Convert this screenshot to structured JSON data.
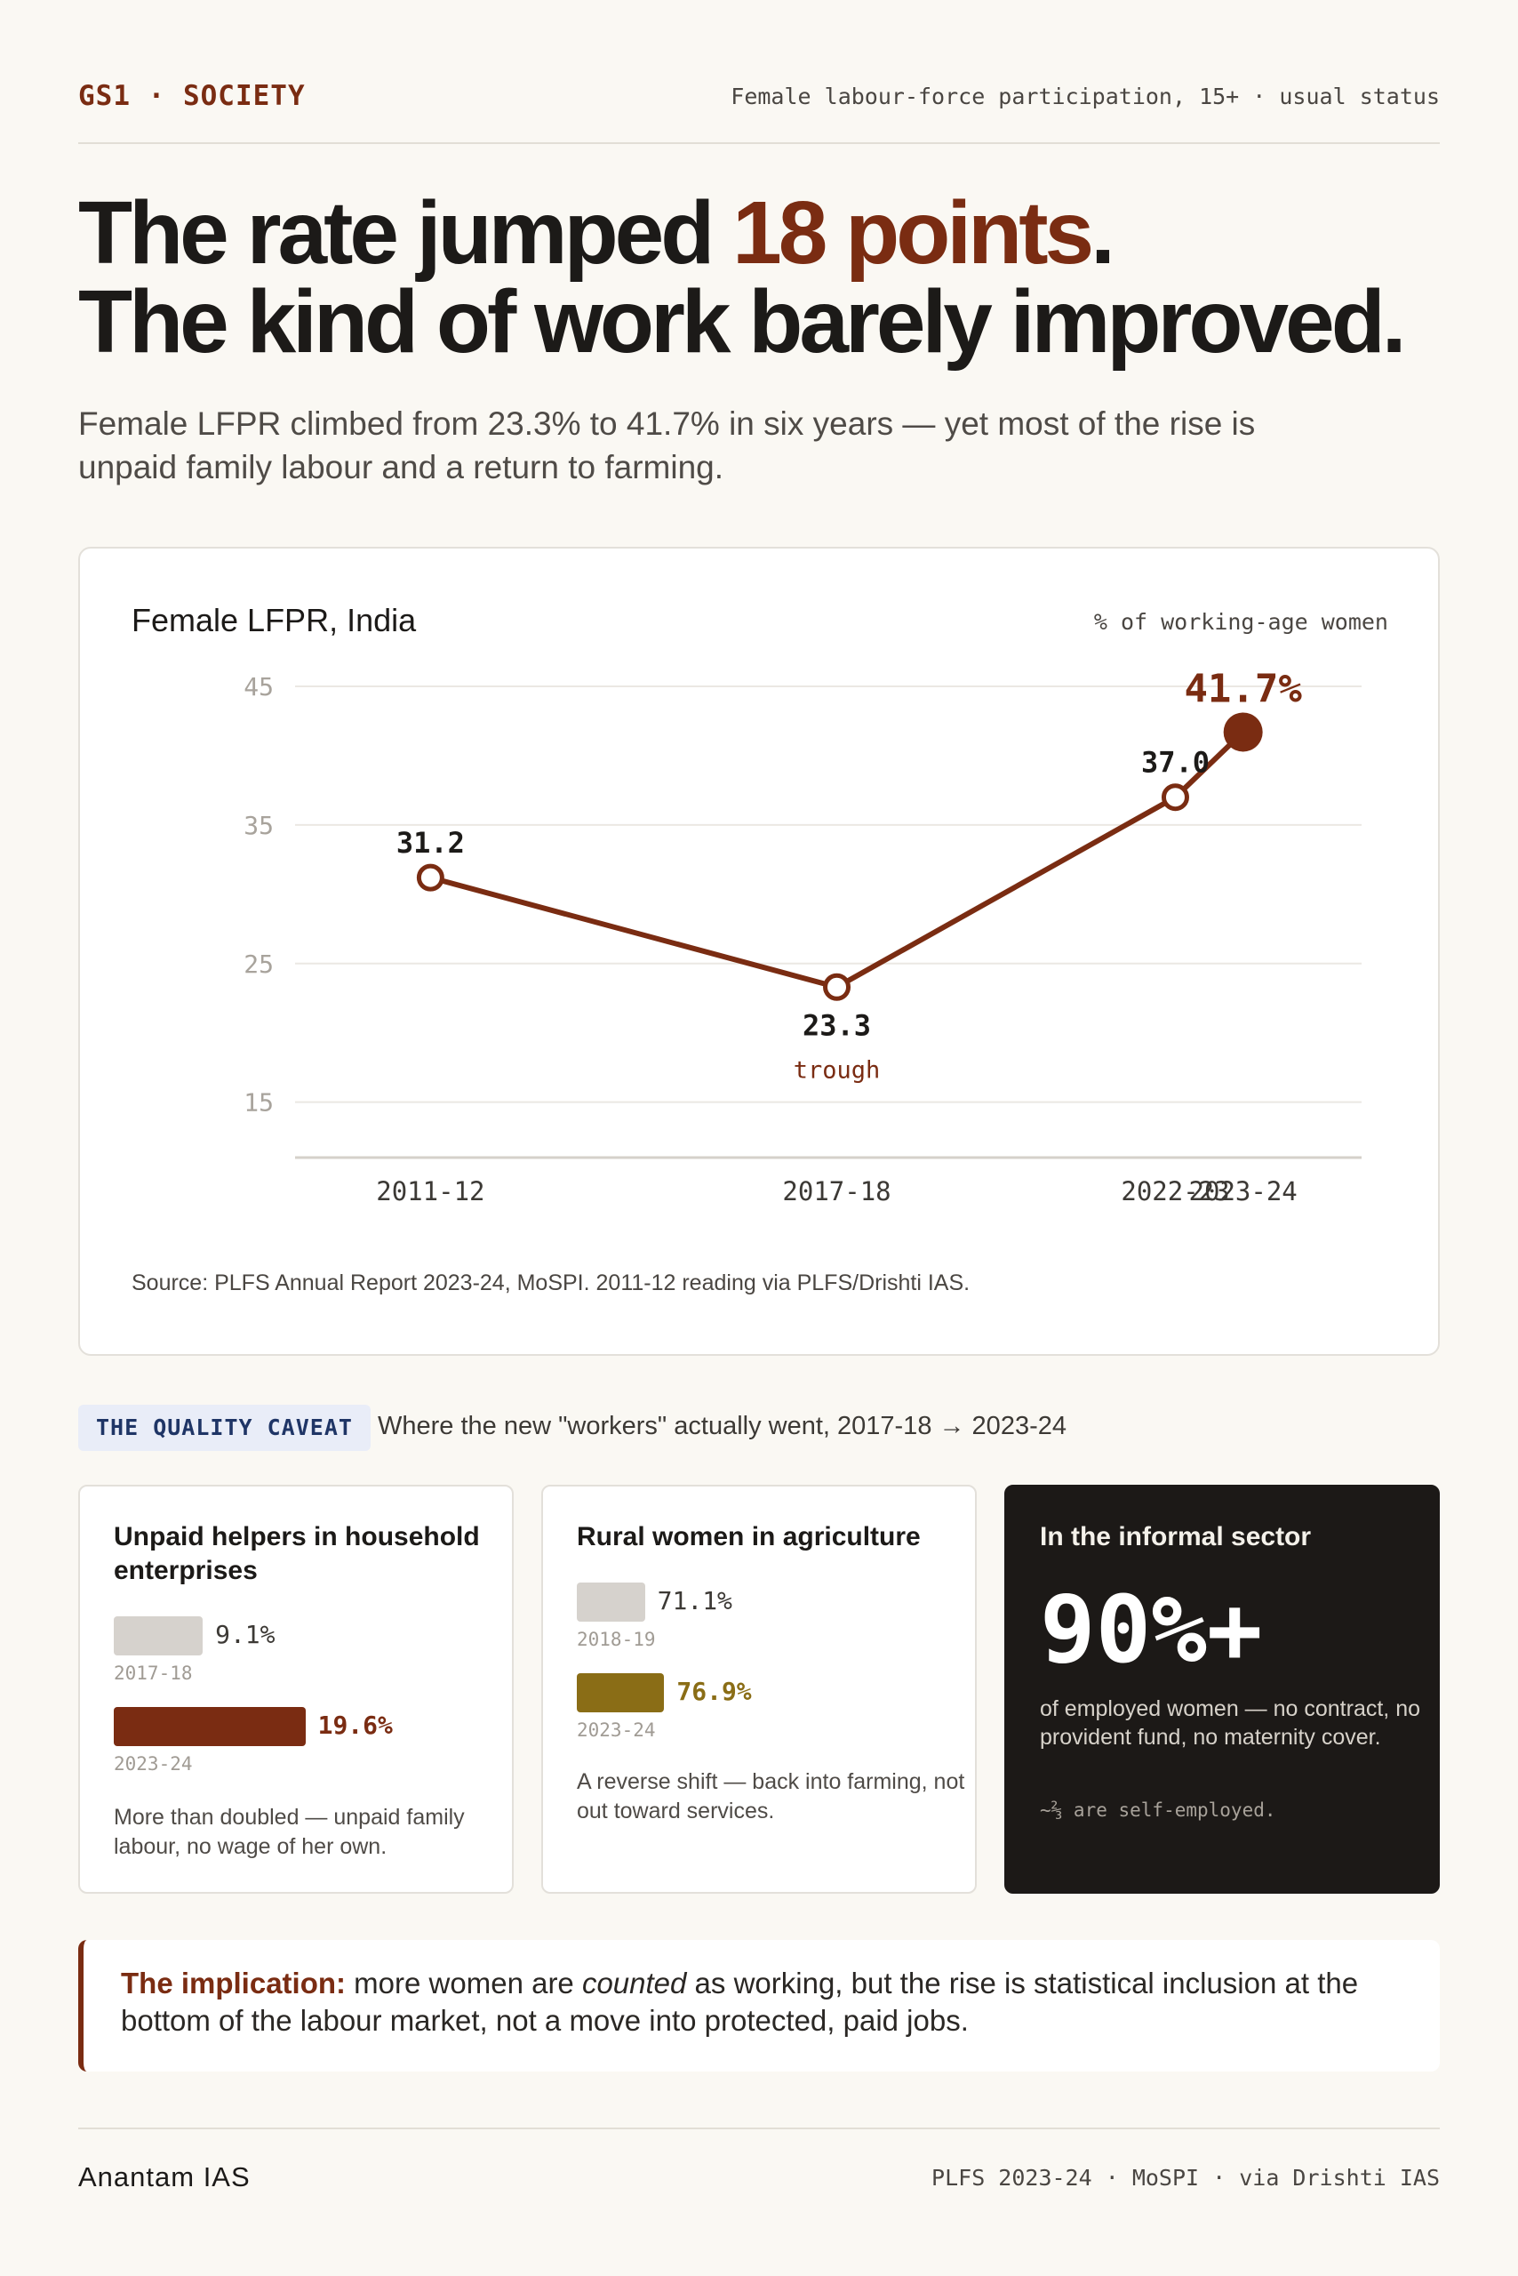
{
  "header": {
    "kicker": "GS1 · SOCIETY",
    "note": "Female labour-force participation, 15+ · usual status"
  },
  "headline": {
    "line1_pre": "The rate jumped ",
    "line1_accent": "18 points",
    "line1_post": ".",
    "line2": "The kind of work barely improved."
  },
  "subhead": "Female LFPR climbed from 23.3% to 41.7% in six years — yet most of the rise is unpaid family labour and a return to farming.",
  "chart_data": {
    "type": "line",
    "title": "Female LFPR, India",
    "unit": "% of working-age women",
    "categories": [
      "2011-12",
      "2017-18",
      "2022-23",
      "2023-24"
    ],
    "x_years": [
      2011.5,
      2017.5,
      2022.5,
      2023.5
    ],
    "values": [
      31.2,
      23.3,
      37.0,
      41.7
    ],
    "point_labels": [
      "31.2",
      "23.3",
      "37.0",
      "41.7%"
    ],
    "annotations": [
      {
        "category": "2017-18",
        "text": "trough"
      }
    ],
    "y_ticks": [
      45,
      35,
      25,
      15
    ],
    "ylim": [
      11,
      45
    ],
    "xlim": [
      2009.5,
      2025.25
    ],
    "grid": true,
    "line_color": "#7a2c12"
  },
  "chart_source": "Source: PLFS Annual Report 2023-24, MoSPI. 2011-12 reading via PLFS/Drishti IAS.",
  "caveat": {
    "tag": "THE QUALITY CAVEAT",
    "text": "Where the new \"workers\" actually went, 2017-18 → 2023-24"
  },
  "cards": [
    {
      "title": "Unpaid helpers in household enterprises",
      "bars": [
        {
          "year": "2017-18",
          "value": 9.1,
          "label": "9.1%",
          "color": "#d6d2cd"
        },
        {
          "year": "2023-24",
          "value": 19.6,
          "label": "19.6%",
          "color": "#7a2c12"
        }
      ],
      "note": "More than doubled — unpaid family labour, no wage of her own."
    },
    {
      "title": "Rural women in agriculture",
      "bars": [
        {
          "year": "2018-19",
          "value": 71.1,
          "label": "71.1%",
          "color": "#d6d2cd"
        },
        {
          "year": "2023-24",
          "value": 76.9,
          "label": "76.9%",
          "color": "#8a6d16"
        }
      ],
      "note": "A reverse shift — back into farming, not out toward services."
    },
    {
      "title": "In the informal sector",
      "stat": "90%+",
      "note": "of employed women — no contract, no provident fund, no maternity cover.",
      "small": "~⅔ are self-employed."
    }
  ],
  "implication": {
    "lead": "The implication:",
    "pre": " more women are ",
    "em": "counted",
    "post": " as working, but the rise is statistical inclusion at the bottom of the labour market, not a move into protected, paid jobs."
  },
  "footer": {
    "brand": "Anantam IAS",
    "source": "PLFS 2023-24 · MoSPI · via Drishti IAS"
  }
}
